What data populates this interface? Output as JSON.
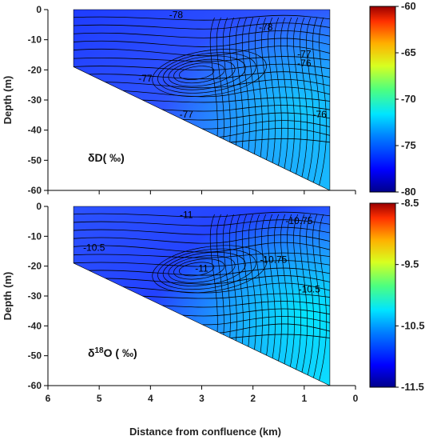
{
  "chart_data": [
    {
      "type": "heatmap",
      "subtype": "contour-section",
      "panel_label_main": "δD",
      "panel_label_sup": "",
      "panel_label_unit": "( ‰)",
      "xlabel": "",
      "ylabel": "Depth (m)",
      "xlim": [
        6,
        0
      ],
      "ylim": [
        -60,
        0
      ],
      "x_ticks": [
        "6",
        "5",
        "4",
        "3",
        "2",
        "1",
        "0"
      ],
      "y_ticks": [
        "0",
        "-10",
        "-20",
        "-30",
        "-40",
        "-50",
        "-60"
      ],
      "colorbar": {
        "range": [
          -80,
          -60
        ],
        "ticks": [
          "-60",
          "-65",
          "-70",
          "-75",
          "-80"
        ]
      },
      "domain_bottom_boundary": [
        {
          "distance_km": 5.5,
          "depth_m": -19
        },
        {
          "distance_km": 0.5,
          "depth_m": -60
        }
      ],
      "contour_labels": [
        {
          "text": "-78",
          "distance_km": 3.5,
          "depth_m": -2
        },
        {
          "text": "-78",
          "distance_km": 1.75,
          "depth_m": -6
        },
        {
          "text": "-77",
          "distance_km": 1.0,
          "depth_m": -15
        },
        {
          "text": "-76",
          "distance_km": 1.0,
          "depth_m": -18
        },
        {
          "text": "-77",
          "distance_km": 4.1,
          "depth_m": -23
        },
        {
          "text": "-77",
          "distance_km": 3.3,
          "depth_m": -35
        },
        {
          "text": "-76",
          "distance_km": 0.7,
          "depth_m": -35
        }
      ],
      "color_field": {
        "note": "values mostly around -78 to -76",
        "min": -78,
        "max": -74
      }
    },
    {
      "type": "heatmap",
      "subtype": "contour-section",
      "panel_label_main": "δ",
      "panel_label_sup": "18",
      "panel_label_unit": "O ( ‰)",
      "xlabel": "Distance from confluence (km)",
      "ylabel": "Depth (m)",
      "xlim": [
        6,
        0
      ],
      "ylim": [
        -60,
        0
      ],
      "x_ticks": [
        "6",
        "5",
        "4",
        "3",
        "2",
        "1",
        "0"
      ],
      "y_ticks": [
        "0",
        "-10",
        "-20",
        "-30",
        "-40",
        "-50",
        "-60"
      ],
      "colorbar": {
        "range": [
          -11.5,
          -8.5
        ],
        "ticks": [
          "-8.5",
          "-9.5",
          "-10.5",
          "-11.5"
        ]
      },
      "domain_bottom_boundary": [
        {
          "distance_km": 5.5,
          "depth_m": -19
        },
        {
          "distance_km": 0.5,
          "depth_m": -60
        }
      ],
      "contour_labels": [
        {
          "text": "-11",
          "distance_km": 3.3,
          "depth_m": -3
        },
        {
          "text": "-10.75",
          "distance_km": 1.1,
          "depth_m": -5
        },
        {
          "text": "-11",
          "distance_km": 3.0,
          "depth_m": -21
        },
        {
          "text": "-10.75",
          "distance_km": 1.6,
          "depth_m": -18
        },
        {
          "text": "-10.5",
          "distance_km": 0.9,
          "depth_m": -28
        },
        {
          "text": "-10.5",
          "distance_km": 5.1,
          "depth_m": -14
        }
      ],
      "color_field": {
        "note": "values mostly around -11 to -10.3",
        "min": -11.1,
        "max": -10.3
      }
    }
  ]
}
